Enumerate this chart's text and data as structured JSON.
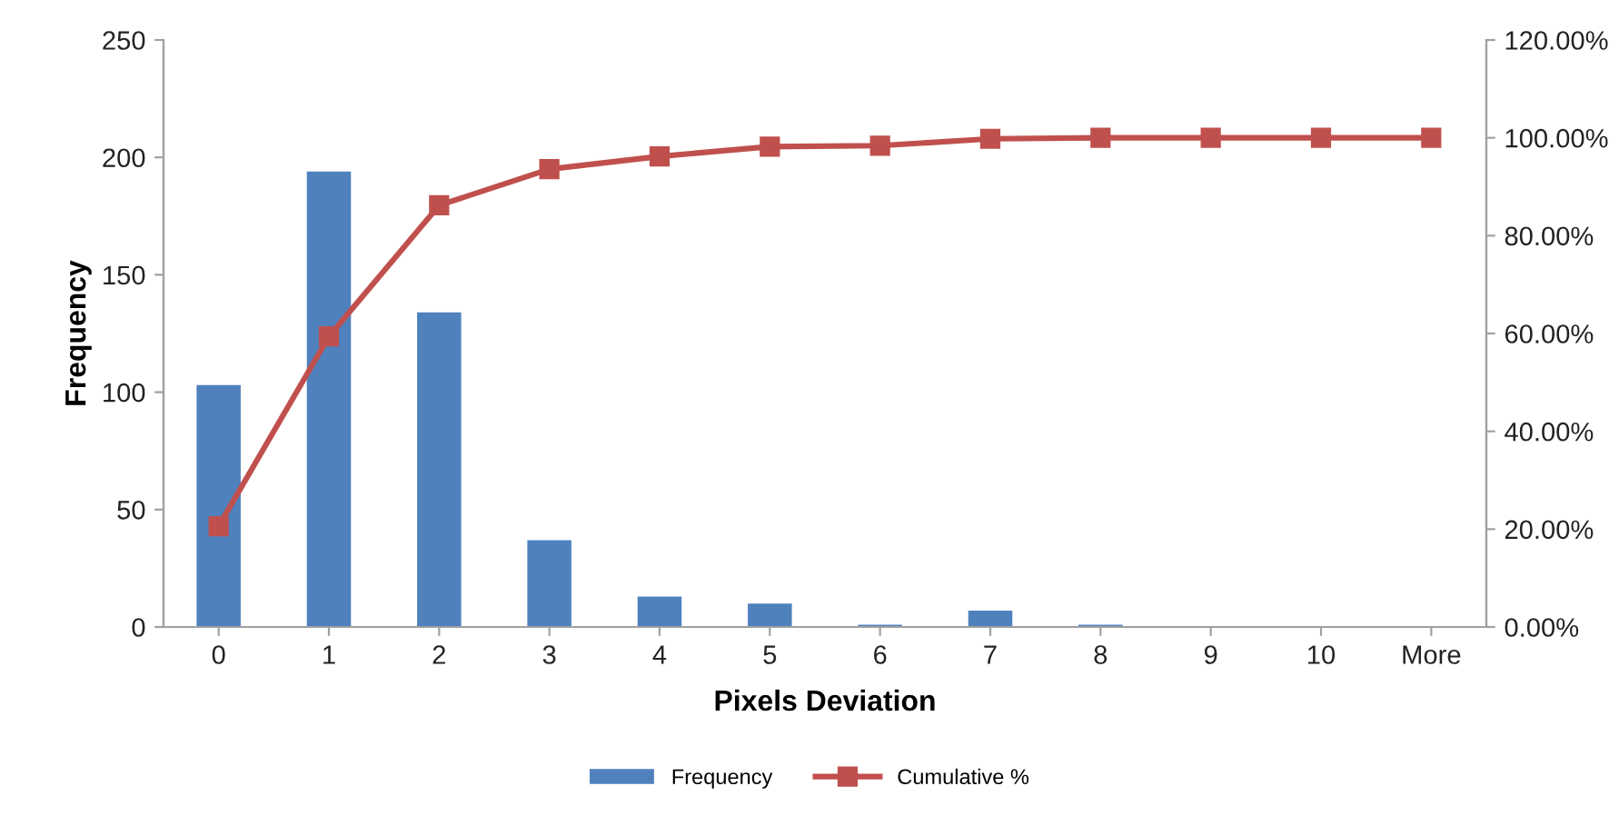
{
  "chart_data": {
    "type": "bar",
    "xlabel": "Pixels Deviation",
    "ylabel": "Frequency",
    "categories": [
      "0",
      "1",
      "2",
      "3",
      "4",
      "5",
      "6",
      "7",
      "8",
      "9",
      "10",
      "More"
    ],
    "series": [
      {
        "name": "Frequency",
        "color": "#4f81bd",
        "values": [
          103,
          194,
          134,
          37,
          13,
          10,
          1,
          7,
          1,
          0,
          0,
          0
        ]
      },
      {
        "name": "Cumulative %",
        "type": "line",
        "axis": "y2",
        "color": "#c0504d",
        "marker": "square",
        "values": [
          20.6,
          59.4,
          86.2,
          93.6,
          96.2,
          98.2,
          98.4,
          99.8,
          100,
          100,
          100,
          100
        ]
      }
    ],
    "ylim": [
      0,
      250
    ],
    "yticks": [
      0,
      50,
      100,
      150,
      200,
      250
    ],
    "y2lim": [
      0,
      120
    ],
    "y2ticks": [
      {
        "value": 0,
        "label": "0.00%"
      },
      {
        "value": 20,
        "label": "20.00%"
      },
      {
        "value": 40,
        "label": "40.00%"
      },
      {
        "value": 60,
        "label": "60.00%"
      },
      {
        "value": 80,
        "label": "80.00%"
      },
      {
        "value": 100,
        "label": "100.00%"
      },
      {
        "value": 120,
        "label": "120.00%"
      }
    ],
    "grid": false,
    "legend": "bottom"
  }
}
